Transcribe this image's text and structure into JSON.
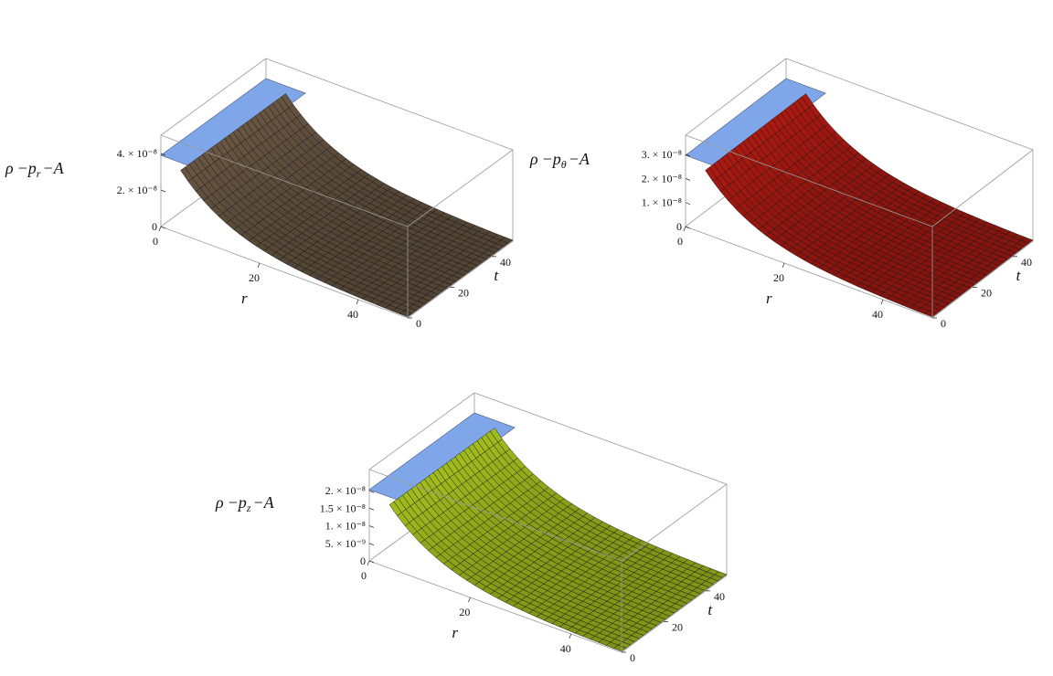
{
  "chart_data": [
    {
      "type": "surface",
      "zlabel": "ρ − p_r − A",
      "zlabel_parts": [
        "ρ",
        "−p",
        "r",
        "−A"
      ],
      "xlabel": "r",
      "ylabel": "t",
      "x_ticks": [
        "0",
        "20",
        "40"
      ],
      "y_ticks": [
        "0",
        "20",
        "40"
      ],
      "z_ticks": [
        "0",
        "2. × 10⁻⁸",
        "4. × 10⁻⁸"
      ],
      "z_tick_values": [
        0,
        2e-08,
        4e-08
      ],
      "xlim": [
        0,
        50
      ],
      "ylim": [
        0,
        50
      ],
      "zlim": [
        0,
        5e-08
      ],
      "peak": 5e-08,
      "decay_length": 11,
      "surface_color": "#6b5844",
      "cap_color": "#7fa6e8"
    },
    {
      "type": "surface",
      "zlabel": "ρ − p_θ − A",
      "zlabel_parts": [
        "ρ",
        "−p",
        "θ",
        "−A"
      ],
      "xlabel": "r",
      "ylabel": "t",
      "x_ticks": [
        "0",
        "20",
        "40"
      ],
      "y_ticks": [
        "0",
        "20",
        "40"
      ],
      "z_ticks": [
        "0",
        "1. × 10⁻⁸",
        "2. × 10⁻⁸",
        "3. × 10⁻⁸"
      ],
      "z_tick_values": [
        0,
        1e-08,
        2e-08,
        3e-08
      ],
      "xlim": [
        0,
        50
      ],
      "ylim": [
        0,
        50
      ],
      "zlim": [
        0,
        3.8e-08
      ],
      "peak": 3.8e-08,
      "decay_length": 11,
      "surface_color": "#b01a12",
      "cap_color": "#7fa6e8"
    },
    {
      "type": "surface",
      "zlabel": "ρ − p_z − A",
      "zlabel_parts": [
        "ρ",
        "−p",
        "z",
        "−A"
      ],
      "xlabel": "r",
      "ylabel": "t",
      "x_ticks": [
        "0",
        "20",
        "40"
      ],
      "y_ticks": [
        "0",
        "20",
        "40"
      ],
      "z_ticks": [
        "0",
        "5. × 10⁻⁹",
        "1. × 10⁻⁸",
        "1.5 × 10⁻⁸",
        "2. × 10⁻⁸"
      ],
      "z_tick_values": [
        0,
        5e-09,
        1e-08,
        1.5e-08,
        2e-08
      ],
      "xlim": [
        0,
        50
      ],
      "ylim": [
        0,
        50
      ],
      "zlim": [
        0,
        2.6e-08
      ],
      "peak": 2.6e-08,
      "decay_length": 11,
      "surface_color": "#a8c21e",
      "cap_color": "#7fa6e8"
    }
  ]
}
